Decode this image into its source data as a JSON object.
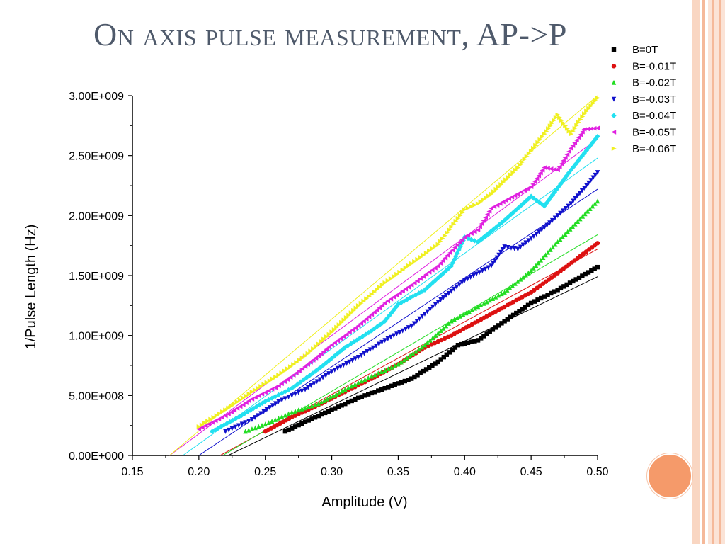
{
  "slide": {
    "title": "On axis pulse measurement, AP->P",
    "accent_color": "#f59a6a",
    "stripe_color": "#f7c4a8"
  },
  "chart_data": {
    "type": "scatter",
    "title": "",
    "xlabel": "Amplitude (V)",
    "ylabel": "1/Pulse Length (Hz)",
    "xlim": [
      0.15,
      0.5
    ],
    "ylim": [
      0,
      3000000000
    ],
    "x_ticks": [
      "0.15",
      "0.20",
      "0.25",
      "0.30",
      "0.35",
      "0.40",
      "0.45",
      "0.50"
    ],
    "y_ticks": [
      "0.00E+000",
      "5.00E+008",
      "1.00E+009",
      "1.50E+009",
      "2.00E+009",
      "2.50E+009",
      "3.00E+009"
    ],
    "grid": false,
    "legend_position": "top-right, outside plot",
    "series": [
      {
        "name": "B=0T",
        "color": "#000000",
        "marker": "square",
        "points": [
          [
            0.265,
            200000000.0
          ],
          [
            0.28,
            280000000.0
          ],
          [
            0.3,
            380000000.0
          ],
          [
            0.32,
            480000000.0
          ],
          [
            0.34,
            560000000.0
          ],
          [
            0.36,
            640000000.0
          ],
          [
            0.38,
            780000000.0
          ],
          [
            0.395,
            920000000.0
          ],
          [
            0.41,
            960000000.0
          ],
          [
            0.43,
            1120000000.0
          ],
          [
            0.45,
            1270000000.0
          ],
          [
            0.47,
            1380000000.0
          ],
          [
            0.5,
            1570000000.0
          ]
        ],
        "fit": [
          [
            0.222,
            0.0
          ],
          [
            0.5,
            1490000000.0
          ]
        ]
      },
      {
        "name": "B=-0.01T",
        "color": "#dd1111",
        "marker": "circle",
        "points": [
          [
            0.25,
            200000000.0
          ],
          [
            0.27,
            320000000.0
          ],
          [
            0.29,
            420000000.0
          ],
          [
            0.31,
            530000000.0
          ],
          [
            0.33,
            640000000.0
          ],
          [
            0.35,
            760000000.0
          ],
          [
            0.37,
            900000000.0
          ],
          [
            0.39,
            1000000000.0
          ],
          [
            0.41,
            1120000000.0
          ],
          [
            0.43,
            1240000000.0
          ],
          [
            0.45,
            1360000000.0
          ],
          [
            0.47,
            1520000000.0
          ],
          [
            0.5,
            1770000000.0
          ]
        ],
        "fit": [
          [
            0.216,
            0.0
          ],
          [
            0.5,
            1720000000.0
          ]
        ]
      },
      {
        "name": "B=-0.02T",
        "color": "#22dd22",
        "marker": "triangle-up",
        "points": [
          [
            0.235,
            200000000.0
          ],
          [
            0.25,
            260000000.0
          ],
          [
            0.27,
            360000000.0
          ],
          [
            0.29,
            430000000.0
          ],
          [
            0.31,
            550000000.0
          ],
          [
            0.33,
            660000000.0
          ],
          [
            0.35,
            760000000.0
          ],
          [
            0.37,
            920000000.0
          ],
          [
            0.39,
            1120000000.0
          ],
          [
            0.41,
            1240000000.0
          ],
          [
            0.43,
            1360000000.0
          ],
          [
            0.45,
            1540000000.0
          ],
          [
            0.47,
            1780000000.0
          ],
          [
            0.5,
            2120000000.0
          ]
        ],
        "fit": [
          [
            0.218,
            0.0
          ],
          [
            0.5,
            1840000000.0
          ]
        ]
      },
      {
        "name": "B=-0.03T",
        "color": "#1111cc",
        "marker": "triangle-down",
        "points": [
          [
            0.22,
            200000000.0
          ],
          [
            0.24,
            300000000.0
          ],
          [
            0.26,
            450000000.0
          ],
          [
            0.28,
            550000000.0
          ],
          [
            0.3,
            700000000.0
          ],
          [
            0.32,
            820000000.0
          ],
          [
            0.34,
            960000000.0
          ],
          [
            0.36,
            1080000000.0
          ],
          [
            0.38,
            1280000000.0
          ],
          [
            0.4,
            1460000000.0
          ],
          [
            0.42,
            1580000000.0
          ],
          [
            0.43,
            1740000000.0
          ],
          [
            0.44,
            1720000000.0
          ],
          [
            0.46,
            1900000000.0
          ],
          [
            0.48,
            2100000000.0
          ],
          [
            0.5,
            2360000000.0
          ]
        ],
        "fit": [
          [
            0.2,
            0.0
          ],
          [
            0.5,
            2220000000.0
          ]
        ]
      },
      {
        "name": "B=-0.04T",
        "color": "#22e0f0",
        "marker": "diamond",
        "points": [
          [
            0.21,
            200000000.0
          ],
          [
            0.23,
            320000000.0
          ],
          [
            0.25,
            450000000.0
          ],
          [
            0.27,
            560000000.0
          ],
          [
            0.29,
            720000000.0
          ],
          [
            0.31,
            900000000.0
          ],
          [
            0.33,
            1040000000.0
          ],
          [
            0.34,
            1120000000.0
          ],
          [
            0.35,
            1260000000.0
          ],
          [
            0.37,
            1380000000.0
          ],
          [
            0.39,
            1580000000.0
          ],
          [
            0.4,
            1820000000.0
          ],
          [
            0.41,
            1780000000.0
          ],
          [
            0.43,
            1960000000.0
          ],
          [
            0.45,
            2160000000.0
          ],
          [
            0.46,
            2080000000.0
          ],
          [
            0.48,
            2380000000.0
          ],
          [
            0.5,
            2660000000.0
          ]
        ],
        "fit": [
          [
            0.188,
            0.0
          ],
          [
            0.5,
            2480000000.0
          ]
        ]
      },
      {
        "name": "B=-0.05T",
        "color": "#e020e0",
        "marker": "triangle-left",
        "points": [
          [
            0.2,
            220000000.0
          ],
          [
            0.22,
            330000000.0
          ],
          [
            0.24,
            470000000.0
          ],
          [
            0.26,
            580000000.0
          ],
          [
            0.28,
            740000000.0
          ],
          [
            0.3,
            920000000.0
          ],
          [
            0.32,
            1080000000.0
          ],
          [
            0.34,
            1270000000.0
          ],
          [
            0.36,
            1420000000.0
          ],
          [
            0.38,
            1580000000.0
          ],
          [
            0.4,
            1820000000.0
          ],
          [
            0.41,
            1880000000.0
          ],
          [
            0.42,
            2060000000.0
          ],
          [
            0.44,
            2180000000.0
          ],
          [
            0.45,
            2240000000.0
          ],
          [
            0.46,
            2400000000.0
          ],
          [
            0.47,
            2380000000.0
          ],
          [
            0.48,
            2560000000.0
          ],
          [
            0.49,
            2720000000.0
          ],
          [
            0.5,
            2730000000.0
          ]
        ],
        "fit": [
          [
            0.178,
            0.0
          ],
          [
            0.5,
            2640000000.0
          ]
        ]
      },
      {
        "name": "B=-0.06T",
        "color": "#f0f020",
        "marker": "triangle-right",
        "points": [
          [
            0.2,
            240000000.0
          ],
          [
            0.22,
            380000000.0
          ],
          [
            0.24,
            530000000.0
          ],
          [
            0.26,
            670000000.0
          ],
          [
            0.28,
            830000000.0
          ],
          [
            0.3,
            1030000000.0
          ],
          [
            0.32,
            1250000000.0
          ],
          [
            0.34,
            1440000000.0
          ],
          [
            0.36,
            1600000000.0
          ],
          [
            0.38,
            1760000000.0
          ],
          [
            0.4,
            2050000000.0
          ],
          [
            0.41,
            2100000000.0
          ],
          [
            0.42,
            2180000000.0
          ],
          [
            0.44,
            2400000000.0
          ],
          [
            0.46,
            2680000000.0
          ],
          [
            0.47,
            2840000000.0
          ],
          [
            0.48,
            2680000000.0
          ],
          [
            0.49,
            2850000000.0
          ],
          [
            0.5,
            2980000000.0
          ]
        ],
        "fit": [
          [
            0.178,
            0.0
          ],
          [
            0.5,
            3000000000.0
          ]
        ]
      }
    ]
  }
}
